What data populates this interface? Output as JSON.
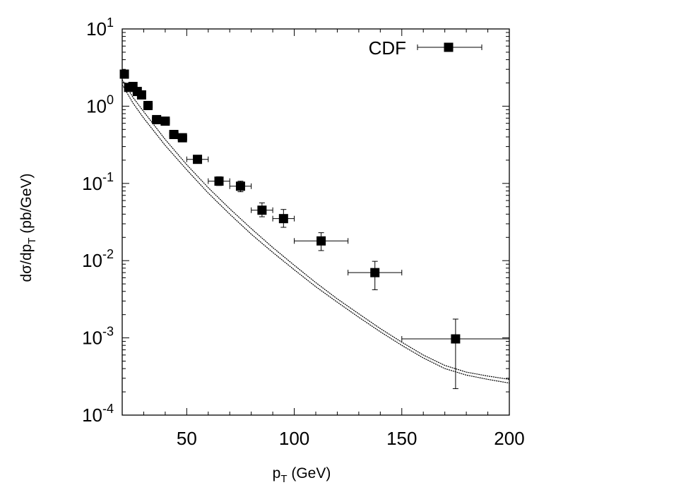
{
  "chart_data": {
    "type": "scatter",
    "title": "",
    "xlabel": "p_T (GeV)",
    "ylabel": "dσ/dp_T (pb/GeV)",
    "xlim": [
      20,
      200
    ],
    "ylim": [
      0.0001,
      10
    ],
    "yscale": "log",
    "xticks": [
      {
        "value": 50,
        "label": "50"
      },
      {
        "value": 100,
        "label": "100"
      },
      {
        "value": 150,
        "label": "150"
      },
      {
        "value": 200,
        "label": "200"
      }
    ],
    "yticks": [
      {
        "exp": 1,
        "base": "10",
        "sup": "1"
      },
      {
        "exp": 0,
        "base": "10",
        "sup": "0"
      },
      {
        "exp": -1,
        "base": "10",
        "sup": "-1"
      },
      {
        "exp": -2,
        "base": "10",
        "sup": "-2"
      },
      {
        "exp": -3,
        "base": "10",
        "sup": "-3"
      },
      {
        "exp": -4,
        "base": "10",
        "sup": "-4"
      }
    ],
    "legend": {
      "label": "CDF",
      "position": "top-right"
    },
    "series": [
      {
        "name": "CDF",
        "points": [
          {
            "x": 21,
            "y": 2.6,
            "xerr": 0,
            "ylo": 2.4,
            "yhi": 2.8
          },
          {
            "x": 23,
            "y": 1.75,
            "xerr": 0,
            "ylo": 1.6,
            "yhi": 1.9
          },
          {
            "x": 25,
            "y": 1.8,
            "xerr": 0,
            "ylo": 1.65,
            "yhi": 1.95
          },
          {
            "x": 27,
            "y": 1.55,
            "xerr": 0,
            "ylo": 1.42,
            "yhi": 1.68
          },
          {
            "x": 29,
            "y": 1.4,
            "xerr": 0,
            "ylo": 1.28,
            "yhi": 1.52
          },
          {
            "x": 32,
            "y": 1.02,
            "xerr": 2,
            "ylo": 0.93,
            "yhi": 1.1
          },
          {
            "x": 36,
            "y": 0.67,
            "xerr": 2,
            "ylo": 0.61,
            "yhi": 0.73
          },
          {
            "x": 40,
            "y": 0.64,
            "xerr": 2,
            "ylo": 0.58,
            "yhi": 0.7
          },
          {
            "x": 44,
            "y": 0.43,
            "xerr": 2,
            "ylo": 0.39,
            "yhi": 0.47
          },
          {
            "x": 48,
            "y": 0.39,
            "xerr": 2,
            "ylo": 0.35,
            "yhi": 0.44
          },
          {
            "x": 55,
            "y": 0.205,
            "xerr": 5,
            "ylo": 0.185,
            "yhi": 0.225
          },
          {
            "x": 65,
            "y": 0.107,
            "xerr": 5,
            "ylo": 0.094,
            "yhi": 0.122
          },
          {
            "x": 75,
            "y": 0.092,
            "xerr": 5,
            "ylo": 0.078,
            "yhi": 0.107
          },
          {
            "x": 85,
            "y": 0.045,
            "xerr": 5,
            "ylo": 0.037,
            "yhi": 0.056
          },
          {
            "x": 95,
            "y": 0.035,
            "xerr": 5,
            "ylo": 0.027,
            "yhi": 0.046
          },
          {
            "x": 112.5,
            "y": 0.018,
            "xerr": 12.5,
            "ylo": 0.0135,
            "yhi": 0.023
          },
          {
            "x": 137.5,
            "y": 0.007,
            "xerr": 12.5,
            "ylo": 0.0042,
            "yhi": 0.0098
          },
          {
            "x": 175,
            "y": 0.00097,
            "xerr": 25,
            "ylo": 0.00022,
            "yhi": 0.00175
          }
        ]
      },
      {
        "name": "theory-upper",
        "x": [
          20,
          25,
          30,
          40,
          50,
          60,
          70,
          80,
          90,
          100,
          110,
          120,
          130,
          140,
          150,
          160,
          170,
          180,
          190,
          200
        ],
        "y": [
          2.2,
          1.3,
          0.85,
          0.37,
          0.175,
          0.088,
          0.047,
          0.026,
          0.0148,
          0.0087,
          0.0052,
          0.0032,
          0.00205,
          0.00132,
          0.00088,
          0.0006,
          0.00044,
          0.00036,
          0.00032,
          0.00029
        ]
      },
      {
        "name": "theory-lower",
        "x": [
          20,
          25,
          30,
          40,
          50,
          60,
          70,
          80,
          90,
          100,
          110,
          120,
          130,
          140,
          150,
          160,
          170,
          180,
          190,
          200
        ],
        "y": [
          1.9,
          1.1,
          0.7,
          0.31,
          0.15,
          0.075,
          0.04,
          0.022,
          0.0128,
          0.0076,
          0.0046,
          0.0029,
          0.00185,
          0.0012,
          0.0008,
          0.00055,
          0.0004,
          0.00033,
          0.00029,
          0.00026
        ]
      }
    ]
  }
}
